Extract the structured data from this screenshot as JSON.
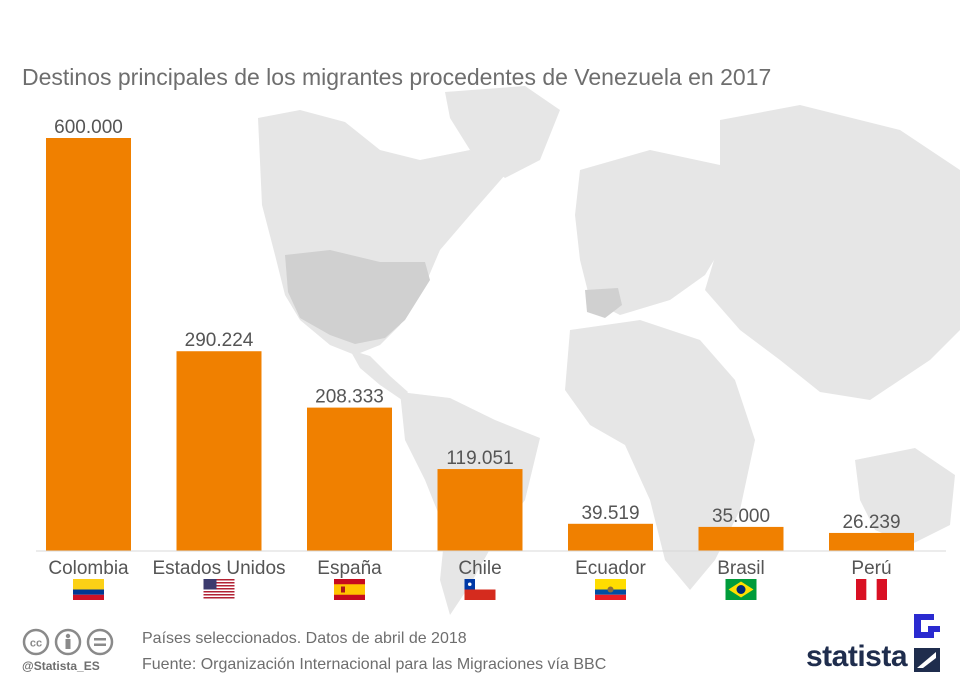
{
  "colors": {
    "bar": "#f08000",
    "map_land": "#e3e3e3",
    "map_highlight": "#cdcdcd",
    "text": "#555555",
    "title": "#6e6e6e",
    "brand": "#1f2d4d"
  },
  "chart_data": {
    "type": "bar",
    "title": "Destinos principales de los migrantes procedentes de Venezuela en 2017",
    "categories": [
      "Colombia",
      "Estados Unidos",
      "España",
      "Chile",
      "Ecuador",
      "Brasil",
      "Perú"
    ],
    "values": [
      600000,
      290224,
      208333,
      119051,
      39519,
      35000,
      26239
    ],
    "value_labels": [
      "600.000",
      "290.224",
      "208.333",
      "119.051",
      "39.519",
      "35.000",
      "26.239"
    ],
    "flag_icons": [
      "flag-colombia-icon",
      "flag-usa-icon",
      "flag-spain-icon",
      "flag-chile-icon",
      "flag-ecuador-icon",
      "flag-brazil-icon",
      "flag-peru-icon"
    ],
    "xlabel": "",
    "ylabel": "",
    "ylim": [
      0,
      600000
    ],
    "grid": false,
    "legend": "none"
  },
  "footer": {
    "note": "Países seleccionados. Datos de abril de 2018",
    "source": "Fuente: Organización Internacional para las Migraciones vía BBC",
    "handle": "@Statista_ES",
    "brand": "statista",
    "license_icons": [
      "cc-icon",
      "attribution-icon",
      "no-derivatives-icon"
    ]
  }
}
